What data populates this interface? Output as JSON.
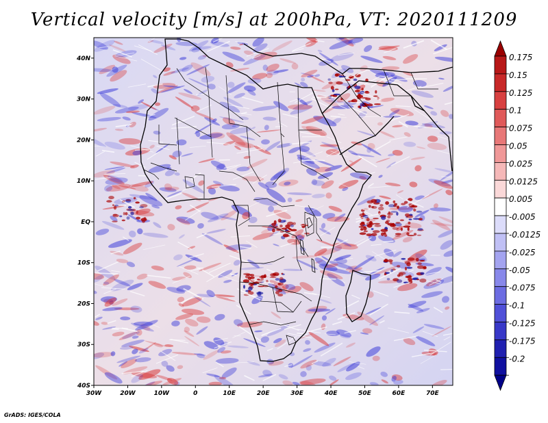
{
  "title": "Vertical velocity [m/s] at 200hPa, VT: 2020111209",
  "credit": "GrADS: IGES/COLA",
  "map": {
    "lon_range": [
      -30,
      76
    ],
    "lat_range": [
      -40,
      45
    ],
    "x_ticks": [
      {
        "value": -30,
        "label": "30W"
      },
      {
        "value": -20,
        "label": "20W"
      },
      {
        "value": -10,
        "label": "10W"
      },
      {
        "value": 0,
        "label": "0"
      },
      {
        "value": 10,
        "label": "10E"
      },
      {
        "value": 20,
        "label": "20E"
      },
      {
        "value": 30,
        "label": "30E"
      },
      {
        "value": 40,
        "label": "40E"
      },
      {
        "value": 50,
        "label": "50E"
      },
      {
        "value": 60,
        "label": "60E"
      },
      {
        "value": 70,
        "label": "70E"
      }
    ],
    "y_ticks": [
      {
        "value": 40,
        "label": "40N"
      },
      {
        "value": 30,
        "label": "30N"
      },
      {
        "value": 20,
        "label": "20N"
      },
      {
        "value": 10,
        "label": "10N"
      },
      {
        "value": 0,
        "label": "EQ"
      },
      {
        "value": -10,
        "label": "10S"
      },
      {
        "value": -20,
        "label": "20S"
      },
      {
        "value": -30,
        "label": "30S"
      },
      {
        "value": -40,
        "label": "40S"
      }
    ],
    "colors": {
      "positive": "#d83030",
      "negative": "#3838d8",
      "coast": "#000000"
    }
  },
  "colorbar": {
    "levels": [
      {
        "label": "0.175",
        "color": "#b81818"
      },
      {
        "label": "0.15",
        "color": "#c82828"
      },
      {
        "label": "0.125",
        "color": "#d84040"
      },
      {
        "label": "0.1",
        "color": "#e05a5a"
      },
      {
        "label": "0.075",
        "color": "#e87878"
      },
      {
        "label": "0.05",
        "color": "#f09898"
      },
      {
        "label": "0.025",
        "color": "#f5b8b8"
      },
      {
        "label": "0.0125",
        "color": "#fad8d8"
      },
      {
        "label": "0.005",
        "color": "#ffffff"
      },
      {
        "label": "-0.005",
        "color": "#dcdcfa"
      },
      {
        "label": "-0.0125",
        "color": "#c0c0f5"
      },
      {
        "label": "-0.025",
        "color": "#a4a4f0"
      },
      {
        "label": "-0.05",
        "color": "#8888ea"
      },
      {
        "label": "-0.075",
        "color": "#6c6ce2"
      },
      {
        "label": "-0.1",
        "color": "#5050d8"
      },
      {
        "label": "-0.125",
        "color": "#3838c8"
      },
      {
        "label": "-0.175",
        "color": "#2020b0"
      },
      {
        "label": "-0.2",
        "color": "#1010a0"
      }
    ],
    "top_arrow_color": "#9a0000",
    "bottom_arrow_color": "#000088"
  }
}
